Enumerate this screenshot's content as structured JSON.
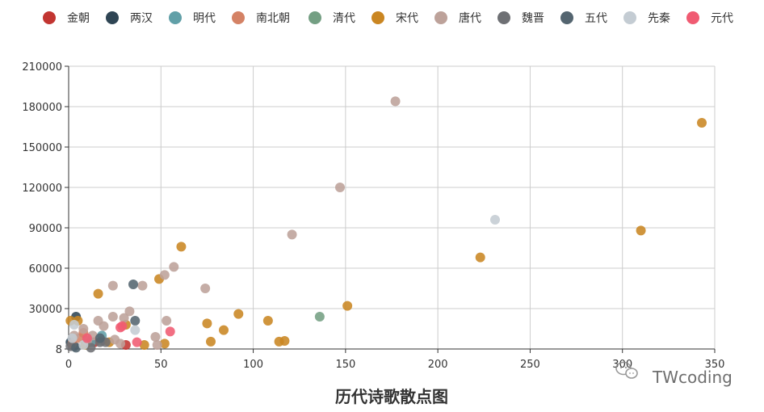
{
  "chart_data": {
    "type": "scatter",
    "title": "历代诗歌散点图",
    "xlabel": "",
    "ylabel": "",
    "xlim": [
      0,
      350
    ],
    "ylim": [
      8,
      210000
    ],
    "x_ticks": [
      0,
      50,
      100,
      150,
      200,
      250,
      300,
      350
    ],
    "y_ticks": [
      8,
      30000,
      60000,
      90000,
      120000,
      150000,
      180000,
      210000
    ],
    "grid": true,
    "legend_position": "top",
    "series": [
      {
        "name": "金朝",
        "color": "#c23531",
        "points": [
          [
            31,
            3000
          ],
          [
            14,
            5000
          ]
        ]
      },
      {
        "name": "两汉",
        "color": "#2f4554",
        "points": [
          [
            4,
            24000
          ],
          [
            1,
            5000
          ],
          [
            3,
            2000
          ]
        ]
      },
      {
        "name": "明代",
        "color": "#61a0a8",
        "points": [
          [
            18,
            10000
          ],
          [
            12,
            5000
          ]
        ]
      },
      {
        "name": "南北朝",
        "color": "#d48265",
        "points": [
          [
            6,
            8000
          ],
          [
            8,
            12000
          ],
          [
            2,
            4000
          ]
        ]
      },
      {
        "name": "清代",
        "color": "#749f83",
        "points": [
          [
            136,
            24000
          ],
          [
            18,
            6000
          ]
        ]
      },
      {
        "name": "宋代",
        "color": "#ca8622",
        "points": [
          [
            343,
            168000
          ],
          [
            310,
            88000
          ],
          [
            223,
            68000
          ],
          [
            61,
            76000
          ],
          [
            49,
            52000
          ],
          [
            16,
            41000
          ],
          [
            151,
            32000
          ],
          [
            92,
            26000
          ],
          [
            108,
            21000
          ],
          [
            75,
            19000
          ],
          [
            84,
            14000
          ],
          [
            117,
            6000
          ],
          [
            114,
            5500
          ],
          [
            77,
            5500
          ],
          [
            52,
            4000
          ],
          [
            41,
            3000
          ],
          [
            31,
            18000
          ],
          [
            5,
            21000
          ],
          [
            1,
            21000
          ],
          [
            9,
            3000
          ],
          [
            22,
            5000
          ]
        ]
      },
      {
        "name": "唐代",
        "color": "#bda29a",
        "points": [
          [
            177,
            184000
          ],
          [
            147,
            120000
          ],
          [
            121,
            85000
          ],
          [
            57,
            61000
          ],
          [
            52,
            55000
          ],
          [
            40,
            47000
          ],
          [
            24,
            47000
          ],
          [
            74,
            45000
          ],
          [
            33,
            28000
          ],
          [
            53,
            21000
          ],
          [
            16,
            21000
          ],
          [
            24,
            24000
          ],
          [
            30,
            23000
          ],
          [
            19,
            17000
          ],
          [
            8,
            15000
          ],
          [
            47,
            9000
          ],
          [
            13,
            10000
          ],
          [
            25,
            7000
          ],
          [
            3,
            10000
          ],
          [
            28,
            4000
          ],
          [
            48,
            3000
          ],
          [
            10,
            6000
          ]
        ]
      },
      {
        "name": "魏晋",
        "color": "#6e7074",
        "points": [
          [
            17,
            5000
          ],
          [
            20,
            5000
          ],
          [
            1,
            2000
          ],
          [
            12,
            1000
          ]
        ]
      },
      {
        "name": "五代",
        "color": "#546570",
        "points": [
          [
            35,
            48000
          ],
          [
            36,
            21000
          ],
          [
            17,
            8000
          ],
          [
            4,
            1000
          ]
        ]
      },
      {
        "name": "先秦",
        "color": "#c4ccd3",
        "points": [
          [
            231,
            96000
          ],
          [
            36,
            14000
          ],
          [
            3,
            18000
          ],
          [
            2,
            8000
          ],
          [
            8,
            3000
          ]
        ]
      },
      {
        "name": "元代",
        "color": "#f05b72",
        "points": [
          [
            29,
            17000
          ],
          [
            55,
            13000
          ],
          [
            10,
            8000
          ],
          [
            37,
            5000
          ],
          [
            28,
            16000
          ]
        ]
      }
    ]
  },
  "watermark": {
    "text": "TWcoding",
    "icon": "wechat-icon"
  }
}
